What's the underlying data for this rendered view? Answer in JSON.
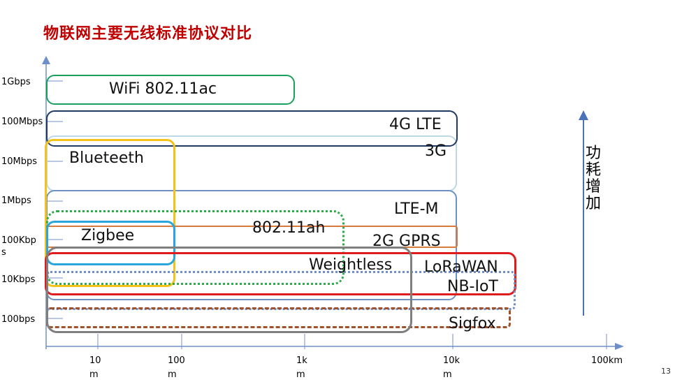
{
  "title": "物联网主要无线标准协议对比",
  "y_axis": {
    "ticks": [
      "1Gbps",
      "100Mbps",
      "10Mbps",
      "1Mbps",
      "100Kbps",
      "10Kbps",
      "100bps"
    ]
  },
  "x_axis": {
    "ticks": [
      "10 m",
      "100 m",
      "1k m",
      "10k m",
      "100km"
    ]
  },
  "protocols": {
    "wifi": "WiFi 802.11ac",
    "lte4g": "4G LTE",
    "g3": "3G",
    "bluetooth": "Blueteeth",
    "ltem": "LTE-M",
    "wifi_ah": "802.11ah",
    "zigbee": "Zigbee",
    "gprs": "2G GPRS",
    "weightless": "Weightless",
    "lorawan": "LoRaWAN",
    "nbiot": "NB-IoT",
    "sigfox": "Sigfox"
  },
  "power_label": "功耗增加",
  "page_number": "13",
  "colors": {
    "title": "#c00000",
    "wifi": "#1aa05a",
    "lte4g": "#1f3864",
    "g3": "#bcd8e6",
    "bluetooth": "#f5c21a",
    "ltem": "#6f90c4",
    "wifi_ah": "#2eab49",
    "zigbee": "#2aa5dc",
    "gprs": "#d77a3c",
    "weightless": "#7f7f7f",
    "lorawan": "#e01b1b",
    "nbiot": "#6f8fca",
    "sigfox": "#a0522d",
    "axis": "#6f8fca"
  }
}
